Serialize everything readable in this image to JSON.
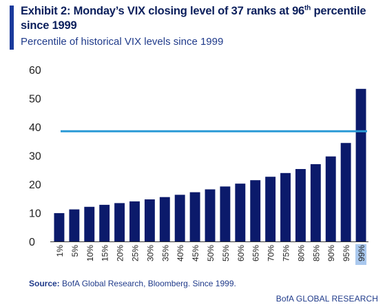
{
  "header": {
    "title_main": "Exhibit 2: Monday’s VIX closing level of 37 ranks at 96",
    "title_sup": "th",
    "title_end": " percentile since 1999",
    "subtitle": "Percentile of historical VIX levels since 1999"
  },
  "chart_data": {
    "type": "bar",
    "categories": [
      "1%",
      "5%",
      "10%",
      "15%",
      "20%",
      "25%",
      "30%",
      "35%",
      "40%",
      "45%",
      "50%",
      "55%",
      "60%",
      "65%",
      "70%",
      "75%",
      "80%",
      "85%",
      "90%",
      "95%",
      "99%"
    ],
    "values": [
      9.9,
      11.2,
      12.1,
      12.8,
      13.4,
      14.0,
      14.7,
      15.5,
      16.3,
      17.2,
      18.2,
      19.2,
      20.2,
      21.4,
      22.6,
      23.9,
      25.3,
      27.0,
      29.7,
      34.4,
      53.3
    ],
    "reference_line": 38.5,
    "ylim": [
      0,
      60
    ],
    "yticks": [
      0,
      10,
      20,
      30,
      40,
      50,
      60
    ],
    "highlighted_category": "99%",
    "colors": {
      "bar": "#0b1a6b",
      "reference_line": "#2b9ad6",
      "axis": "#333333",
      "highlight_bg": "#a9c8ee"
    },
    "xlabel": "",
    "ylabel": ""
  },
  "footer": {
    "source_label": "Source:",
    "source_text": " BofA Global Research, Bloomberg. Since 1999.",
    "brand": "BofA GLOBAL RESEARCH"
  }
}
